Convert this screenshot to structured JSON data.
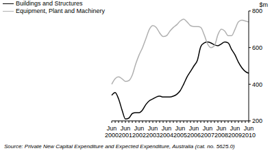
{
  "chart_data": {
    "type": "line",
    "y_label": "$m",
    "source": "Source: Private New Capital Expenditure and Expected Expenditure, Australia (cat. no. 5625.0)",
    "categories": [
      "Jun 2000",
      null,
      null,
      null,
      "Jun 2001",
      null,
      null,
      null,
      "Jun 2002",
      null,
      null,
      null,
      "Jun 2003",
      null,
      null,
      null,
      "Jun 2004",
      null,
      null,
      null,
      "Jun 2005",
      null,
      null,
      null,
      "Jun 2006",
      null,
      null,
      null,
      "Jun 2007",
      null,
      null,
      null,
      "Jun 2008",
      null,
      null,
      null,
      "Jun 2009",
      null,
      null,
      null,
      "Jun 2010"
    ],
    "series": [
      {
        "name": "Buildings and Structures",
        "color": "#000000",
        "values": [
          340,
          355,
          320,
          260,
          210,
          215,
          240,
          245,
          245,
          260,
          290,
          310,
          320,
          330,
          335,
          330,
          330,
          330,
          335,
          345,
          365,
          400,
          440,
          470,
          500,
          530,
          605,
          625,
          630,
          625,
          615,
          610,
          620,
          630,
          625,
          590,
          560,
          520,
          490,
          470,
          460
        ]
      },
      {
        "name": "Equipment, Plant and Machinery",
        "color": "#b0b0b0",
        "values": [
          400,
          430,
          440,
          430,
          415,
          420,
          450,
          510,
          560,
          600,
          650,
          700,
          720,
          710,
          680,
          660,
          665,
          690,
          710,
          725,
          745,
          755,
          740,
          720,
          715,
          715,
          710,
          670,
          620,
          600,
          610,
          670,
          700,
          690,
          665,
          665,
          700,
          740,
          750,
          745,
          740
        ]
      }
    ],
    "ylim": [
      200,
      800
    ],
    "yticks": [
      200,
      400,
      600,
      800
    ],
    "grid": false,
    "legend": "top-left"
  }
}
